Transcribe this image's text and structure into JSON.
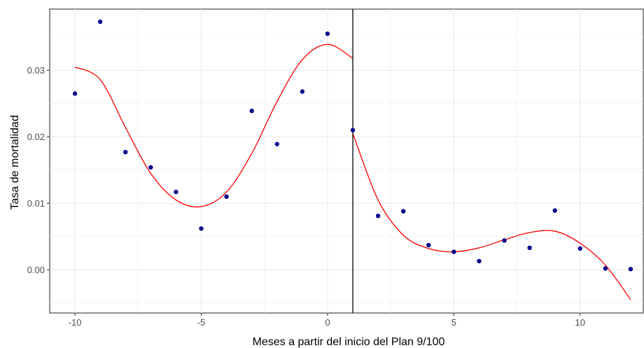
{
  "chart_data": {
    "type": "scatter",
    "title": "",
    "xlabel": "Meses a partir del inicio del Plan 9/100",
    "ylabel": "Tasa de mortalidad",
    "xlim": [
      -11,
      12.5
    ],
    "ylim": [
      -0.0065,
      0.0392
    ],
    "x_ticks": [
      -10,
      -5,
      0,
      5,
      10
    ],
    "x_tick_labels": [
      "-10",
      "-5",
      "0",
      "5",
      "10"
    ],
    "y_ticks": [
      0.0,
      0.01,
      0.02,
      0.03
    ],
    "y_tick_labels": [
      "0.00",
      "0.01",
      "0.02",
      "0.03"
    ],
    "grid": true,
    "cutoff_x": 1,
    "points_color": "#00008B",
    "fit_color": "#FF0000",
    "series": [
      {
        "x": [
          -10,
          -9,
          -8,
          -7,
          -6,
          -5,
          -4,
          -3,
          -2,
          -1,
          0,
          1,
          2,
          3,
          4,
          5,
          6,
          7,
          8,
          9,
          10,
          11,
          12
        ],
        "values": [
          0.0265,
          0.0373,
          0.0177,
          0.0154,
          0.0117,
          0.0062,
          0.011,
          0.0239,
          0.0189,
          0.0268,
          0.0355,
          0.021,
          0.0081,
          0.0088,
          0.0037,
          0.0027,
          0.0013,
          0.0044,
          0.0033,
          0.0089,
          0.0032,
          0.0002,
          0.0001
        ]
      }
    ],
    "fit_curves": [
      {
        "x_range": [
          -10,
          1
        ],
        "x": [
          -10,
          -9,
          -8,
          -7,
          -6,
          -5,
          -4,
          -3,
          -2,
          -1,
          0,
          1
        ],
        "y": [
          0.0305,
          0.0286,
          0.0214,
          0.0145,
          0.0105,
          0.0095,
          0.0117,
          0.0175,
          0.0253,
          0.0316,
          0.0339,
          0.0318
        ]
      },
      {
        "x_range": [
          1,
          12
        ],
        "x": [
          1,
          2,
          3,
          4,
          5,
          6,
          7,
          8,
          9,
          10,
          11,
          12
        ],
        "y": [
          0.0205,
          0.0105,
          0.0052,
          0.0032,
          0.0027,
          0.0033,
          0.0045,
          0.0056,
          0.0058,
          0.004,
          0.0007,
          -0.0045
        ]
      }
    ]
  }
}
